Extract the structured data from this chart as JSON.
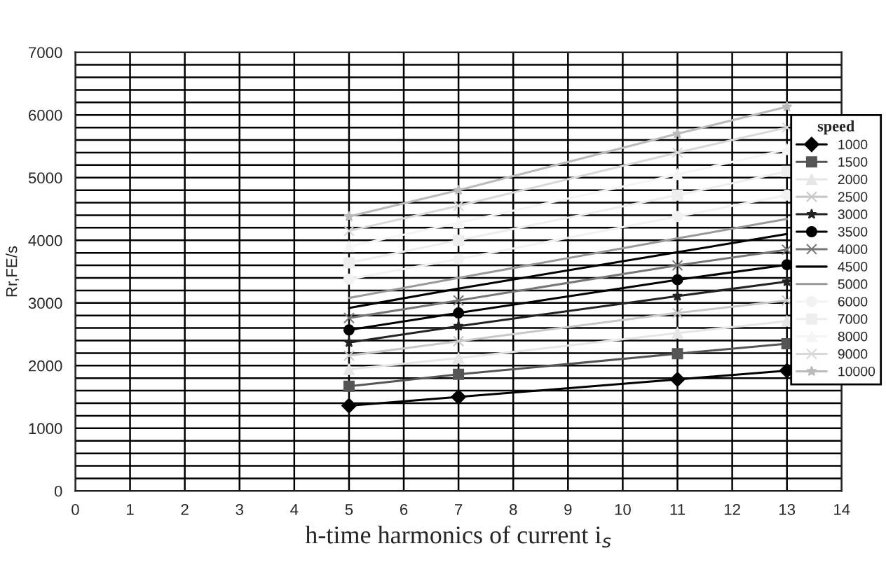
{
  "chart_data": {
    "type": "line",
    "xlabel": "h-time harmonics of current i$_{s}$",
    "ylabel": "Rr,FE/s",
    "legend_title": "speed",
    "legend": "right",
    "x": [
      5,
      7,
      11,
      13
    ],
    "xlim": [
      0,
      14
    ],
    "xticks": [
      0,
      1,
      2,
      3,
      4,
      5,
      6,
      7,
      8,
      9,
      10,
      11,
      12,
      13,
      14
    ],
    "ylim": [
      0,
      7000
    ],
    "yticks": [
      0,
      {
        "value": 200,
        "label": null
      },
      {
        "value": 400,
        "label": null
      },
      {
        "value": 600,
        "label": null
      },
      {
        "value": 800,
        "label": null
      },
      1000,
      {
        "value": 1200,
        "label": null
      },
      {
        "value": 1400,
        "label": null
      },
      {
        "value": 1600,
        "label": null
      },
      {
        "value": 1800,
        "label": null
      },
      2000,
      {
        "value": 2200,
        "label": null
      },
      {
        "value": 2400,
        "label": null
      },
      {
        "value": 2600,
        "label": null
      },
      {
        "value": 2800,
        "label": null
      },
      3000,
      {
        "value": 3200,
        "label": null
      },
      {
        "value": 3400,
        "label": null
      },
      {
        "value": 3600,
        "label": null
      },
      {
        "value": 3800,
        "label": null
      },
      4000,
      {
        "value": 4200,
        "label": null
      },
      {
        "value": 4400,
        "label": null
      },
      {
        "value": 4600,
        "label": null
      },
      {
        "value": 4800,
        "label": null
      },
      5000,
      {
        "value": 5200,
        "label": null
      },
      {
        "value": 5400,
        "label": null
      },
      {
        "value": 5600,
        "label": null
      },
      {
        "value": 5800,
        "label": null
      },
      6000,
      {
        "value": 6200,
        "label": null
      },
      {
        "value": 6400,
        "label": null
      },
      {
        "value": 6600,
        "label": null
      },
      {
        "value": 6800,
        "label": null
      },
      7000
    ],
    "grid": true,
    "series": [
      {
        "name": "1000",
        "color": "#000000",
        "marker": "diamond",
        "values": [
          1360,
          1500,
          1780,
          1920
        ]
      },
      {
        "name": "1500",
        "color": "#555555",
        "marker": "square",
        "values": [
          1670,
          1860,
          2190,
          2350
        ]
      },
      {
        "name": "2000",
        "color": "#e6e6e6",
        "marker": "triangle",
        "values": [
          1940,
          2120,
          2520,
          2710
        ]
      },
      {
        "name": "2500",
        "color": "#c8c8c8",
        "marker": "cross",
        "values": [
          2160,
          2390,
          2840,
          3040
        ]
      },
      {
        "name": "3000",
        "color": "#222222",
        "marker": "star",
        "values": [
          2370,
          2630,
          3110,
          3340
        ]
      },
      {
        "name": "3500",
        "color": "#000000",
        "marker": "circle",
        "values": [
          2570,
          2840,
          3370,
          3610
        ]
      },
      {
        "name": "4000",
        "color": "#777777",
        "marker": "cross",
        "values": [
          2760,
          3040,
          3600,
          3850
        ]
      },
      {
        "name": "4500",
        "color": "#000000",
        "marker": "none",
        "values": [
          2920,
          3230,
          3810,
          4100
        ]
      },
      {
        "name": "5000",
        "color": "#999999",
        "marker": "none",
        "values": [
          3080,
          3400,
          4030,
          4340
        ]
      },
      {
        "name": "6000",
        "color": "#f2f2f2",
        "marker": "circle",
        "values": [
          3380,
          3700,
          4380,
          4720
        ]
      },
      {
        "name": "7000",
        "color": "#eeeeee",
        "marker": "square",
        "values": [
          3640,
          4000,
          4720,
          5100
        ]
      },
      {
        "name": "8000",
        "color": "#f5f5f5",
        "marker": "triangle",
        "values": [
          3900,
          4280,
          5050,
          5450
        ]
      },
      {
        "name": "9000",
        "color": "#d9d9d9",
        "marker": "cross",
        "values": [
          4150,
          4550,
          5400,
          5800
        ]
      },
      {
        "name": "10000",
        "color": "#bbbbbb",
        "marker": "star",
        "values": [
          4380,
          4800,
          5700,
          6130
        ]
      }
    ]
  }
}
